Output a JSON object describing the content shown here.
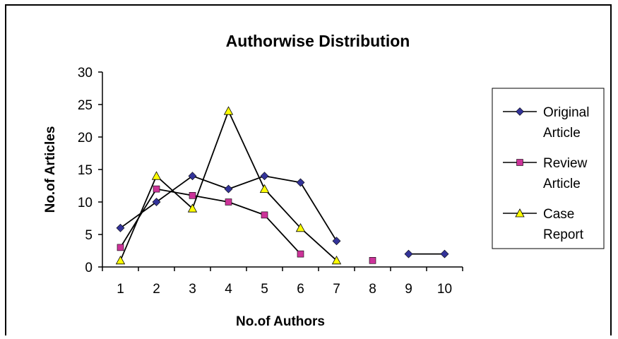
{
  "chart_data": {
    "type": "line",
    "title": "Authorwise Distribution",
    "xlabel": "No.of Authors",
    "ylabel": "No.of Articles",
    "categories": [
      "1",
      "2",
      "3",
      "4",
      "5",
      "6",
      "7",
      "8",
      "9",
      "10"
    ],
    "ylim": [
      0,
      30
    ],
    "yticks": [
      "0",
      "5",
      "10",
      "15",
      "20",
      "25",
      "30"
    ],
    "grid": false,
    "legend_position": "right",
    "series": [
      {
        "name": "Original Article",
        "name_lines": [
          "Original",
          "Article"
        ],
        "marker": "diamond",
        "color": "#333399",
        "values": [
          6,
          10,
          14,
          12,
          14,
          13,
          4,
          null,
          2,
          2
        ]
      },
      {
        "name": "Review Article",
        "name_lines": [
          "Review",
          "Article"
        ],
        "marker": "square",
        "color": "#cc3399",
        "values": [
          3,
          12,
          11,
          10,
          8,
          2,
          null,
          1,
          null,
          null
        ]
      },
      {
        "name": "Case Report",
        "name_lines": [
          "Case",
          "Report"
        ],
        "marker": "triangle",
        "color": "#ffff00",
        "values": [
          1,
          14,
          9,
          24,
          12,
          6,
          1,
          null,
          null,
          null
        ]
      }
    ]
  }
}
